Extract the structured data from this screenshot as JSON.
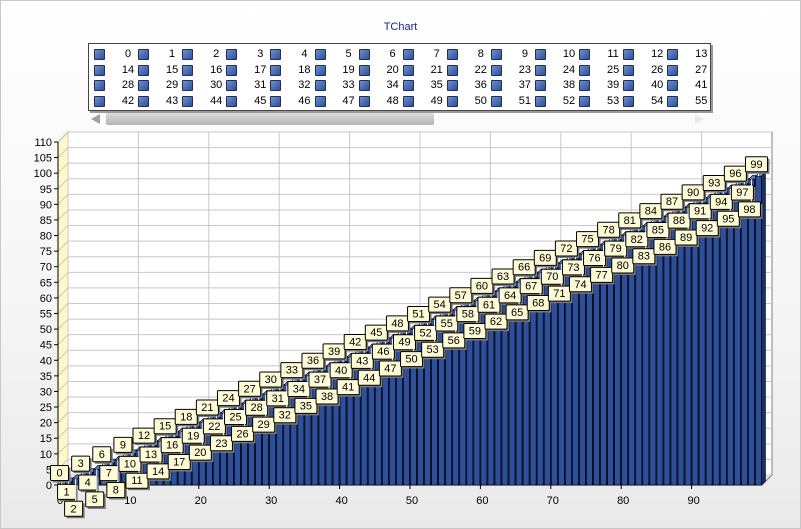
{
  "chart_data": {
    "type": "bar",
    "title": "TChart",
    "categories": [
      "0",
      "1",
      "2",
      "3",
      "4",
      "5",
      "6",
      "7",
      "8",
      "9",
      "10",
      "11",
      "12",
      "13",
      "14",
      "15",
      "16",
      "17",
      "18",
      "19",
      "20",
      "21",
      "22",
      "23",
      "24",
      "25",
      "26",
      "27",
      "28",
      "29",
      "30",
      "31",
      "32",
      "33",
      "34",
      "35",
      "36",
      "37",
      "38",
      "39",
      "40",
      "41",
      "42",
      "43",
      "44",
      "45",
      "46",
      "47",
      "48",
      "49",
      "50",
      "51",
      "52",
      "53",
      "54",
      "55",
      "56",
      "57",
      "58",
      "59",
      "60",
      "61",
      "62",
      "63",
      "64",
      "65",
      "66",
      "67",
      "68",
      "69",
      "70",
      "71",
      "72",
      "73",
      "74",
      "75",
      "76",
      "77",
      "78",
      "79",
      "80",
      "81",
      "82",
      "83",
      "84",
      "85",
      "86",
      "87",
      "88",
      "89",
      "90",
      "91",
      "92",
      "93",
      "94",
      "95",
      "96",
      "97",
      "98",
      "99"
    ],
    "values": [
      0,
      1,
      2,
      3,
      4,
      5,
      6,
      7,
      8,
      9,
      10,
      11,
      12,
      13,
      14,
      15,
      16,
      17,
      18,
      19,
      20,
      21,
      22,
      23,
      24,
      25,
      26,
      27,
      28,
      29,
      30,
      31,
      32,
      33,
      34,
      35,
      36,
      37,
      38,
      39,
      40,
      41,
      42,
      43,
      44,
      45,
      46,
      47,
      48,
      49,
      50,
      51,
      52,
      53,
      54,
      55,
      56,
      57,
      58,
      59,
      60,
      61,
      62,
      63,
      64,
      65,
      66,
      67,
      68,
      69,
      70,
      71,
      72,
      73,
      74,
      75,
      76,
      77,
      78,
      79,
      80,
      81,
      82,
      83,
      84,
      85,
      86,
      87,
      88,
      89,
      90,
      91,
      92,
      93,
      94,
      95,
      96,
      97,
      98,
      99
    ],
    "x_ticks": [
      "0",
      "10",
      "20",
      "30",
      "40",
      "50",
      "60",
      "70",
      "80",
      "90"
    ],
    "y_ticks": [
      "0",
      "5",
      "10",
      "15",
      "20",
      "25",
      "30",
      "35",
      "40",
      "45",
      "50",
      "55",
      "60",
      "65",
      "70",
      "75",
      "80",
      "85",
      "90",
      "95",
      "100",
      "105",
      "110"
    ],
    "ylim": [
      0,
      110
    ],
    "xlim": [
      0,
      100
    ],
    "grid": true,
    "legend_position": "top",
    "legend_visible_entries": [
      "0",
      "1",
      "2",
      "3",
      "4",
      "5",
      "6",
      "7",
      "8",
      "9",
      "10",
      "11",
      "12",
      "13",
      "14",
      "15",
      "16",
      "17",
      "18",
      "19",
      "20",
      "21",
      "22",
      "23",
      "24",
      "25",
      "26",
      "27",
      "28",
      "29",
      "30",
      "31",
      "32",
      "33",
      "34",
      "35",
      "36",
      "37",
      "38",
      "39",
      "40",
      "41",
      "42",
      "43",
      "44",
      "45",
      "46",
      "47",
      "48",
      "49",
      "50",
      "51",
      "52",
      "53",
      "54",
      "55"
    ],
    "bar_color": "#2f4f9a",
    "label_fill": "#fffbd6"
  }
}
